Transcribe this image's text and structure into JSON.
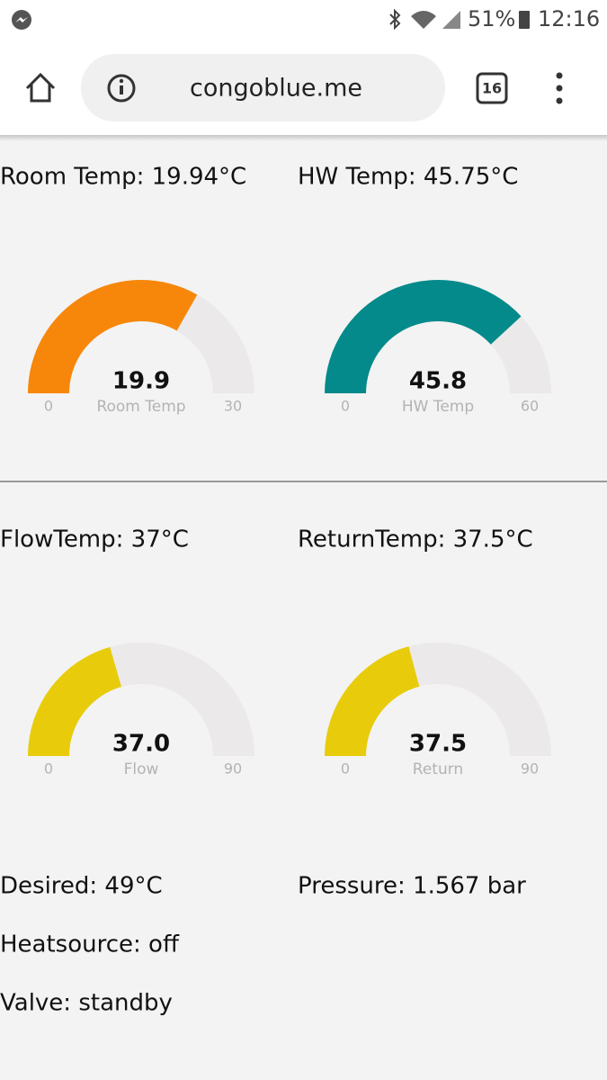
{
  "status_bar": {
    "battery": "51%",
    "time": "12:16"
  },
  "browser": {
    "url": "congoblue.me",
    "tab_count": "16"
  },
  "gauges": [
    {
      "heading": "Room Temp: 19.94°C",
      "label": "Room Temp",
      "value": 19.94,
      "value_label": "19.9",
      "min": 0,
      "max": 30,
      "color": "#f7870a"
    },
    {
      "heading": "HW Temp: 45.75°C",
      "label": "HW Temp",
      "value": 45.75,
      "value_label": "45.8",
      "min": 0,
      "max": 60,
      "color": "#048a8a"
    },
    {
      "heading": "FlowTemp: 37°C",
      "label": "Flow",
      "value": 37,
      "value_label": "37.0",
      "min": 0,
      "max": 90,
      "color": "#e8cc0b"
    },
    {
      "heading": "ReturnTemp: 37.5°C",
      "label": "Return",
      "value": 37.5,
      "min": 0,
      "max": 90,
      "color": "#e8cc0b"
    }
  ],
  "readings": [
    "Desired: 49°C",
    "Pressure: 1.567 bar",
    "Heatsource: off",
    "Valve: standby"
  ]
}
